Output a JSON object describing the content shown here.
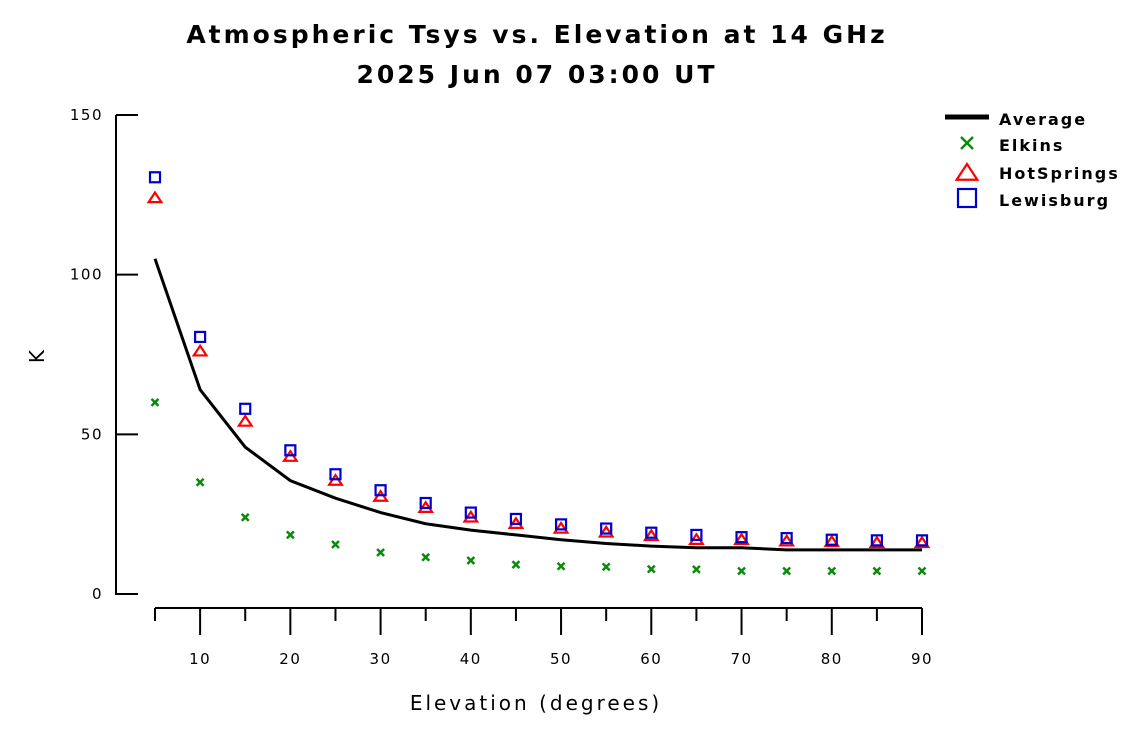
{
  "chart_data": {
    "type": "line",
    "title": "Atmospheric Tsys vs. Elevation at 14 GHz",
    "subtitle": "2025 Jun 07 03:00 UT",
    "xlabel": "Elevation (degrees)",
    "ylabel": "K",
    "xlim": [
      5,
      90
    ],
    "ylim": [
      0,
      150
    ],
    "x_ticks": [
      10,
      20,
      30,
      40,
      50,
      60,
      70,
      80,
      90
    ],
    "x_minor_ticks": [
      5,
      15,
      25,
      35,
      45,
      55,
      65,
      75,
      85
    ],
    "y_ticks": [
      0,
      50,
      100,
      150
    ],
    "grid": false,
    "legend_position": "top-right",
    "x": [
      5,
      10,
      15,
      20,
      25,
      30,
      35,
      40,
      45,
      50,
      55,
      60,
      65,
      70,
      75,
      80,
      85,
      90
    ],
    "series": [
      {
        "name": "Average",
        "marker": "line",
        "color": "#000000",
        "values": [
          105,
          64,
          46,
          35.5,
          30,
          25.5,
          22,
          20,
          18.5,
          17,
          15.8,
          15,
          14.5,
          14.5,
          13.8,
          13.8,
          13.8,
          13.8
        ]
      },
      {
        "name": "Elkins",
        "marker": "x",
        "color": "#0a8a0a",
        "values": [
          60,
          35,
          24,
          18.5,
          15.5,
          13,
          11.5,
          10.5,
          9.2,
          8.7,
          8.5,
          7.8,
          7.7,
          7.2,
          7.2,
          7.2,
          7.2,
          7.2
        ]
      },
      {
        "name": "HotSprings",
        "marker": "triangle",
        "color": "#ff0000",
        "values": [
          124,
          76,
          54,
          43,
          35.5,
          30.5,
          27,
          24,
          22,
          20.5,
          19.3,
          18.2,
          17,
          17,
          16.5,
          16.3,
          16,
          16
        ]
      },
      {
        "name": "Lewisburg",
        "marker": "square",
        "color": "#0000cc",
        "values": [
          130.5,
          80.5,
          58,
          45,
          37.5,
          32.5,
          28.5,
          25.5,
          23.5,
          21.8,
          20.5,
          19.2,
          18.5,
          17.8,
          17.5,
          17,
          16.8,
          16.8
        ]
      }
    ]
  }
}
